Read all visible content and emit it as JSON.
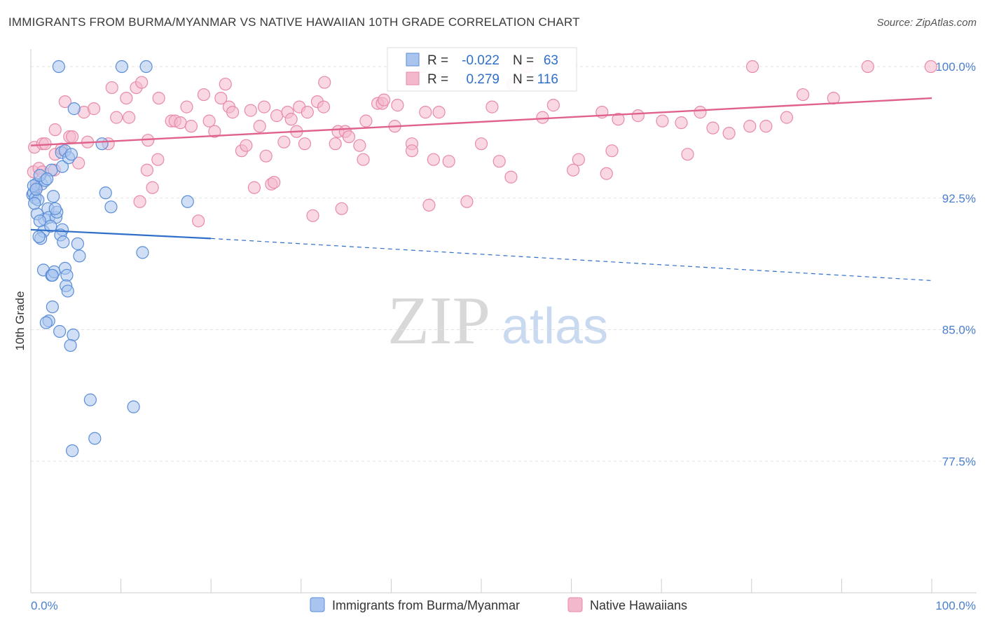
{
  "title": "IMMIGRANTS FROM BURMA/MYANMAR VS NATIVE HAWAIIAN 10TH GRADE CORRELATION CHART",
  "source": "Source: ZipAtlas.com",
  "watermark": {
    "zip": "ZIP",
    "atlas": "atlas"
  },
  "legend": {
    "r_label": "R =",
    "n_label": "N =",
    "series1": {
      "r": "-0.022",
      "n": "63"
    },
    "series2": {
      "r": "0.279",
      "n": "116"
    }
  },
  "colors": {
    "blue_fill": "#a9c4ee",
    "blue_stroke": "#5a8ed8",
    "blue_line": "#2f6fc9",
    "pink_fill": "#f4b8cc",
    "pink_stroke": "#e88aa8",
    "pink_line": "#e0628c",
    "tick_text": "#4a7fd0"
  },
  "chart_data": {
    "type": "scatter",
    "title": "IMMIGRANTS FROM BURMA/MYANMAR VS NATIVE HAWAIIAN 10TH GRADE CORRELATION CHART",
    "xlabel": "",
    "ylabel": "10th Grade",
    "xlim": [
      0,
      100
    ],
    "ylim": [
      70.0,
      101.0
    ],
    "x_tick_labels": [
      "0.0%",
      "100.0%"
    ],
    "y_ticks": [
      77.5,
      85.0,
      92.5,
      100.0
    ],
    "y_tick_labels": [
      "77.5%",
      "85.0%",
      "92.5%",
      "100.0%"
    ],
    "grid": true,
    "legend_position": "top-center",
    "series": [
      {
        "name": "Immigrants from Burma/Myanmar",
        "color": "#a9c4ee",
        "trend": {
          "x": [
            0,
            20,
            100
          ],
          "y": [
            90.7,
            90.2,
            87.8
          ],
          "solid_until": 20
        },
        "points": [
          [
            3.1,
            100.0
          ],
          [
            10.1,
            100.0
          ],
          [
            12.8,
            100.0
          ],
          [
            4.8,
            97.6
          ],
          [
            0.2,
            92.7
          ],
          [
            0.3,
            92.8
          ],
          [
            0.5,
            92.5
          ],
          [
            0.6,
            93.3
          ],
          [
            0.8,
            92.4
          ],
          [
            1.2,
            93.3
          ],
          [
            1.6,
            93.5
          ],
          [
            2.3,
            94.1
          ],
          [
            3.5,
            94.3
          ],
          [
            3.4,
            95.1
          ],
          [
            3.8,
            95.2
          ],
          [
            4.2,
            94.8
          ],
          [
            4.5,
            95.0
          ],
          [
            7.9,
            95.6
          ],
          [
            1.9,
            91.9
          ],
          [
            1.5,
            91.3
          ],
          [
            2.0,
            91.4
          ],
          [
            2.8,
            91.4
          ],
          [
            2.9,
            91.7
          ],
          [
            2.7,
            91.9
          ],
          [
            0.7,
            91.6
          ],
          [
            1.0,
            91.2
          ],
          [
            1.4,
            90.6
          ],
          [
            2.2,
            90.9
          ],
          [
            3.5,
            90.7
          ],
          [
            3.3,
            90.4
          ],
          [
            1.1,
            90.2
          ],
          [
            0.9,
            90.3
          ],
          [
            3.6,
            90.0
          ],
          [
            5.2,
            89.9
          ],
          [
            5.4,
            89.2
          ],
          [
            12.4,
            89.4
          ],
          [
            8.3,
            92.8
          ],
          [
            8.9,
            92.0
          ],
          [
            17.4,
            92.3
          ],
          [
            1.4,
            88.4
          ],
          [
            2.3,
            88.1
          ],
          [
            2.6,
            88.3
          ],
          [
            3.8,
            88.5
          ],
          [
            4.0,
            88.1
          ],
          [
            2.4,
            88.1
          ],
          [
            3.9,
            87.5
          ],
          [
            4.1,
            87.2
          ],
          [
            2.4,
            86.3
          ],
          [
            2.0,
            85.5
          ],
          [
            1.7,
            85.4
          ],
          [
            3.2,
            84.9
          ],
          [
            4.7,
            84.7
          ],
          [
            4.4,
            84.1
          ],
          [
            6.6,
            81.0
          ],
          [
            11.4,
            80.6
          ],
          [
            7.1,
            78.8
          ],
          [
            4.6,
            78.1
          ],
          [
            0.3,
            93.2
          ],
          [
            0.4,
            92.2
          ],
          [
            0.6,
            93.0
          ],
          [
            1.0,
            93.8
          ],
          [
            1.8,
            93.6
          ],
          [
            2.5,
            92.6
          ]
        ]
      },
      {
        "name": "Native Hawaiians",
        "color": "#f4b8cc",
        "trend": {
          "x": [
            0,
            100
          ],
          "y": [
            95.5,
            98.2
          ]
        },
        "points": [
          [
            0.4,
            95.4
          ],
          [
            1.3,
            95.6
          ],
          [
            1.6,
            95.6
          ],
          [
            0.3,
            94.0
          ],
          [
            0.9,
            94.2
          ],
          [
            2.6,
            94.1
          ],
          [
            0.6,
            93.1
          ],
          [
            1.3,
            94.0
          ],
          [
            2.7,
            95.0
          ],
          [
            3.4,
            95.3
          ],
          [
            4.3,
            96.0
          ],
          [
            4.6,
            96.0
          ],
          [
            5.3,
            94.5
          ],
          [
            6.3,
            95.7
          ],
          [
            8.6,
            95.6
          ],
          [
            2.7,
            96.4
          ],
          [
            3.8,
            98.0
          ],
          [
            5.9,
            97.4
          ],
          [
            7.0,
            97.6
          ],
          [
            9.0,
            98.8
          ],
          [
            9.5,
            97.1
          ],
          [
            10.6,
            98.2
          ],
          [
            10.9,
            97.1
          ],
          [
            11.7,
            98.8
          ],
          [
            12.3,
            99.1
          ],
          [
            13.0,
            95.8
          ],
          [
            14.1,
            94.7
          ],
          [
            12.9,
            94.1
          ],
          [
            13.5,
            93.1
          ],
          [
            12.1,
            92.3
          ],
          [
            14.2,
            98.2
          ],
          [
            15.6,
            96.9
          ],
          [
            16.0,
            96.9
          ],
          [
            16.6,
            96.8
          ],
          [
            17.3,
            97.7
          ],
          [
            17.8,
            96.6
          ],
          [
            18.6,
            91.2
          ],
          [
            19.2,
            98.4
          ],
          [
            19.8,
            96.9
          ],
          [
            20.4,
            96.3
          ],
          [
            21.1,
            98.2
          ],
          [
            21.6,
            99.0
          ],
          [
            22.0,
            97.7
          ],
          [
            22.4,
            97.4
          ],
          [
            23.4,
            95.2
          ],
          [
            23.9,
            95.5
          ],
          [
            24.4,
            97.5
          ],
          [
            24.8,
            93.1
          ],
          [
            25.4,
            96.6
          ],
          [
            25.9,
            97.7
          ],
          [
            26.1,
            94.9
          ],
          [
            26.7,
            93.3
          ],
          [
            27.0,
            93.4
          ],
          [
            27.3,
            97.2
          ],
          [
            28.1,
            95.7
          ],
          [
            28.5,
            97.4
          ],
          [
            28.9,
            97.0
          ],
          [
            29.5,
            96.3
          ],
          [
            29.8,
            97.7
          ],
          [
            30.4,
            95.6
          ],
          [
            30.7,
            97.4
          ],
          [
            31.3,
            91.5
          ],
          [
            31.8,
            98.0
          ],
          [
            32.5,
            97.7
          ],
          [
            32.6,
            99.1
          ],
          [
            33.8,
            95.6
          ],
          [
            34.1,
            96.3
          ],
          [
            34.5,
            91.9
          ],
          [
            34.9,
            96.3
          ],
          [
            35.3,
            96.0
          ],
          [
            36.5,
            95.5
          ],
          [
            36.9,
            94.7
          ],
          [
            37.2,
            96.9
          ],
          [
            38.5,
            97.9
          ],
          [
            39.0,
            97.9
          ],
          [
            39.2,
            98.1
          ],
          [
            40.4,
            96.6
          ],
          [
            40.7,
            97.8
          ],
          [
            42.3,
            95.6
          ],
          [
            42.3,
            95.2
          ],
          [
            43.4,
            100.0
          ],
          [
            43.8,
            97.4
          ],
          [
            44.2,
            92.1
          ],
          [
            44.7,
            94.7
          ],
          [
            45.3,
            97.4
          ],
          [
            46.4,
            94.6
          ],
          [
            48.4,
            92.3
          ],
          [
            50.0,
            95.6
          ],
          [
            51.2,
            97.7
          ],
          [
            52.0,
            94.6
          ],
          [
            53.3,
            93.7
          ],
          [
            53.5,
            99.0
          ],
          [
            55.0,
            100.0
          ],
          [
            56.8,
            97.1
          ],
          [
            58.0,
            97.8
          ],
          [
            60.2,
            94.1
          ],
          [
            60.8,
            94.7
          ],
          [
            63.4,
            97.4
          ],
          [
            63.9,
            93.9
          ],
          [
            64.5,
            95.2
          ],
          [
            65.2,
            97.0
          ],
          [
            67.4,
            97.2
          ],
          [
            70.1,
            96.9
          ],
          [
            72.2,
            96.8
          ],
          [
            72.9,
            95.0
          ],
          [
            74.3,
            97.4
          ],
          [
            75.7,
            96.5
          ],
          [
            77.5,
            96.2
          ],
          [
            79.8,
            96.6
          ],
          [
            80.1,
            100.0
          ],
          [
            81.6,
            96.6
          ],
          [
            83.9,
            97.1
          ],
          [
            85.7,
            98.4
          ],
          [
            89.1,
            98.2
          ],
          [
            92.9,
            100.0
          ],
          [
            99.9,
            100.0
          ]
        ]
      }
    ]
  },
  "bottom_legend": [
    {
      "label": "Immigrants from Burma/Myanmar"
    },
    {
      "label": "Native Hawaiians"
    }
  ]
}
